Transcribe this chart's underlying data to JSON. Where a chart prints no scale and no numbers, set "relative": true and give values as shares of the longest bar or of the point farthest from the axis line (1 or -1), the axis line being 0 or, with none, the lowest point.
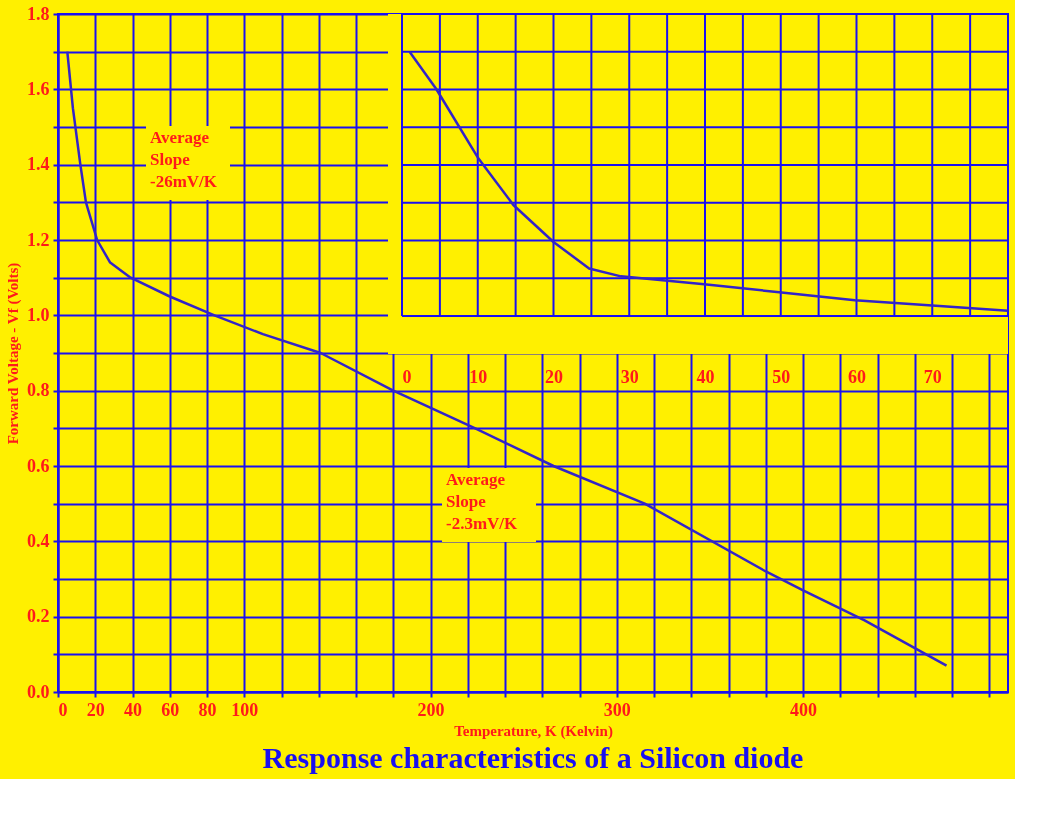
{
  "chart_data": [
    {
      "type": "line",
      "title": "Response characteristics of a Silicon diode",
      "xlabel": "Temperature, K (Kelvin)",
      "ylabel": "Forward Voltage - Vf (Volts)",
      "annotations": [
        "Average\nSlope\n-26mV/K",
        "Average\nSlope\n-2.3mV/K"
      ],
      "x": [
        5,
        8,
        12,
        15,
        21,
        28,
        39,
        60,
        84,
        110,
        141,
        180,
        224,
        266,
        315,
        380,
        400,
        433,
        477
      ],
      "values": [
        1.7,
        1.55,
        1.4,
        1.3,
        1.2,
        1.14,
        1.1,
        1.05,
        1.0,
        0.95,
        0.9,
        0.8,
        0.7,
        0.6,
        0.5,
        0.32,
        0.27,
        0.19,
        0.07
      ],
      "color": "#3324c8",
      "xlim": [
        0,
        510
      ],
      "ylim": [
        0,
        1.8
      ],
      "xticks": [
        0,
        20,
        40,
        60,
        80,
        100,
        {
          "value": 120,
          "label": null
        },
        {
          "value": 140,
          "label": null
        },
        {
          "value": 160,
          "label": null
        },
        {
          "value": 180,
          "label": null
        },
        200,
        {
          "value": 220,
          "label": null
        },
        {
          "value": 240,
          "label": null
        },
        {
          "value": 260,
          "label": null
        },
        {
          "value": 280,
          "label": null
        },
        300,
        {
          "value": 320,
          "label": null
        },
        {
          "value": 340,
          "label": null
        },
        {
          "value": 360,
          "label": null
        },
        {
          "value": 380,
          "label": null
        },
        400,
        {
          "value": 420,
          "label": null
        },
        {
          "value": 440,
          "label": null
        },
        {
          "value": 460,
          "label": null
        },
        {
          "value": 480,
          "label": null
        },
        {
          "value": 500,
          "label": null
        }
      ],
      "yticks": [
        {
          "value": 0,
          "label": "0.0"
        },
        {
          "value": 0.1,
          "label": null
        },
        0.2,
        {
          "value": 0.3,
          "label": null
        },
        0.4,
        {
          "value": 0.5,
          "label": null
        },
        0.6,
        {
          "value": 0.7,
          "label": null
        },
        0.8,
        {
          "value": 0.9,
          "label": null
        },
        {
          "value": 1.0,
          "label": "1.0"
        },
        {
          "value": 1.1,
          "label": null
        },
        1.2,
        {
          "value": 1.3,
          "label": null
        },
        1.4,
        {
          "value": 1.5,
          "label": null
        },
        1.6,
        {
          "value": 1.7,
          "label": null
        },
        1.8
      ],
      "grid": true
    },
    {
      "type": "line",
      "relative": true,
      "x": [
        1,
        4.5,
        10,
        14.7,
        20,
        24.7,
        28.9,
        39.9,
        49.8,
        59.8,
        70,
        80
      ],
      "values": [
        1.0,
        0.86,
        0.6,
        0.42,
        0.28,
        0.18,
        0.15,
        0.12,
        0.09,
        0.06,
        0.04,
        0.02
      ],
      "color": "#3324c8",
      "xlim": [
        0,
        80
      ],
      "xticks": [
        0,
        {
          "value": 5,
          "label": null
        },
        10,
        {
          "value": 15,
          "label": null
        },
        20,
        {
          "value": 25,
          "label": null
        },
        30,
        {
          "value": 35,
          "label": null
        },
        40,
        {
          "value": 45,
          "label": null
        },
        50,
        {
          "value": 55,
          "label": null
        },
        60,
        {
          "value": 65,
          "label": null
        },
        70,
        {
          "value": 75,
          "label": null
        },
        {
          "value": 80,
          "label": null
        }
      ],
      "grid": true,
      "tick_labels": "x"
    }
  ]
}
